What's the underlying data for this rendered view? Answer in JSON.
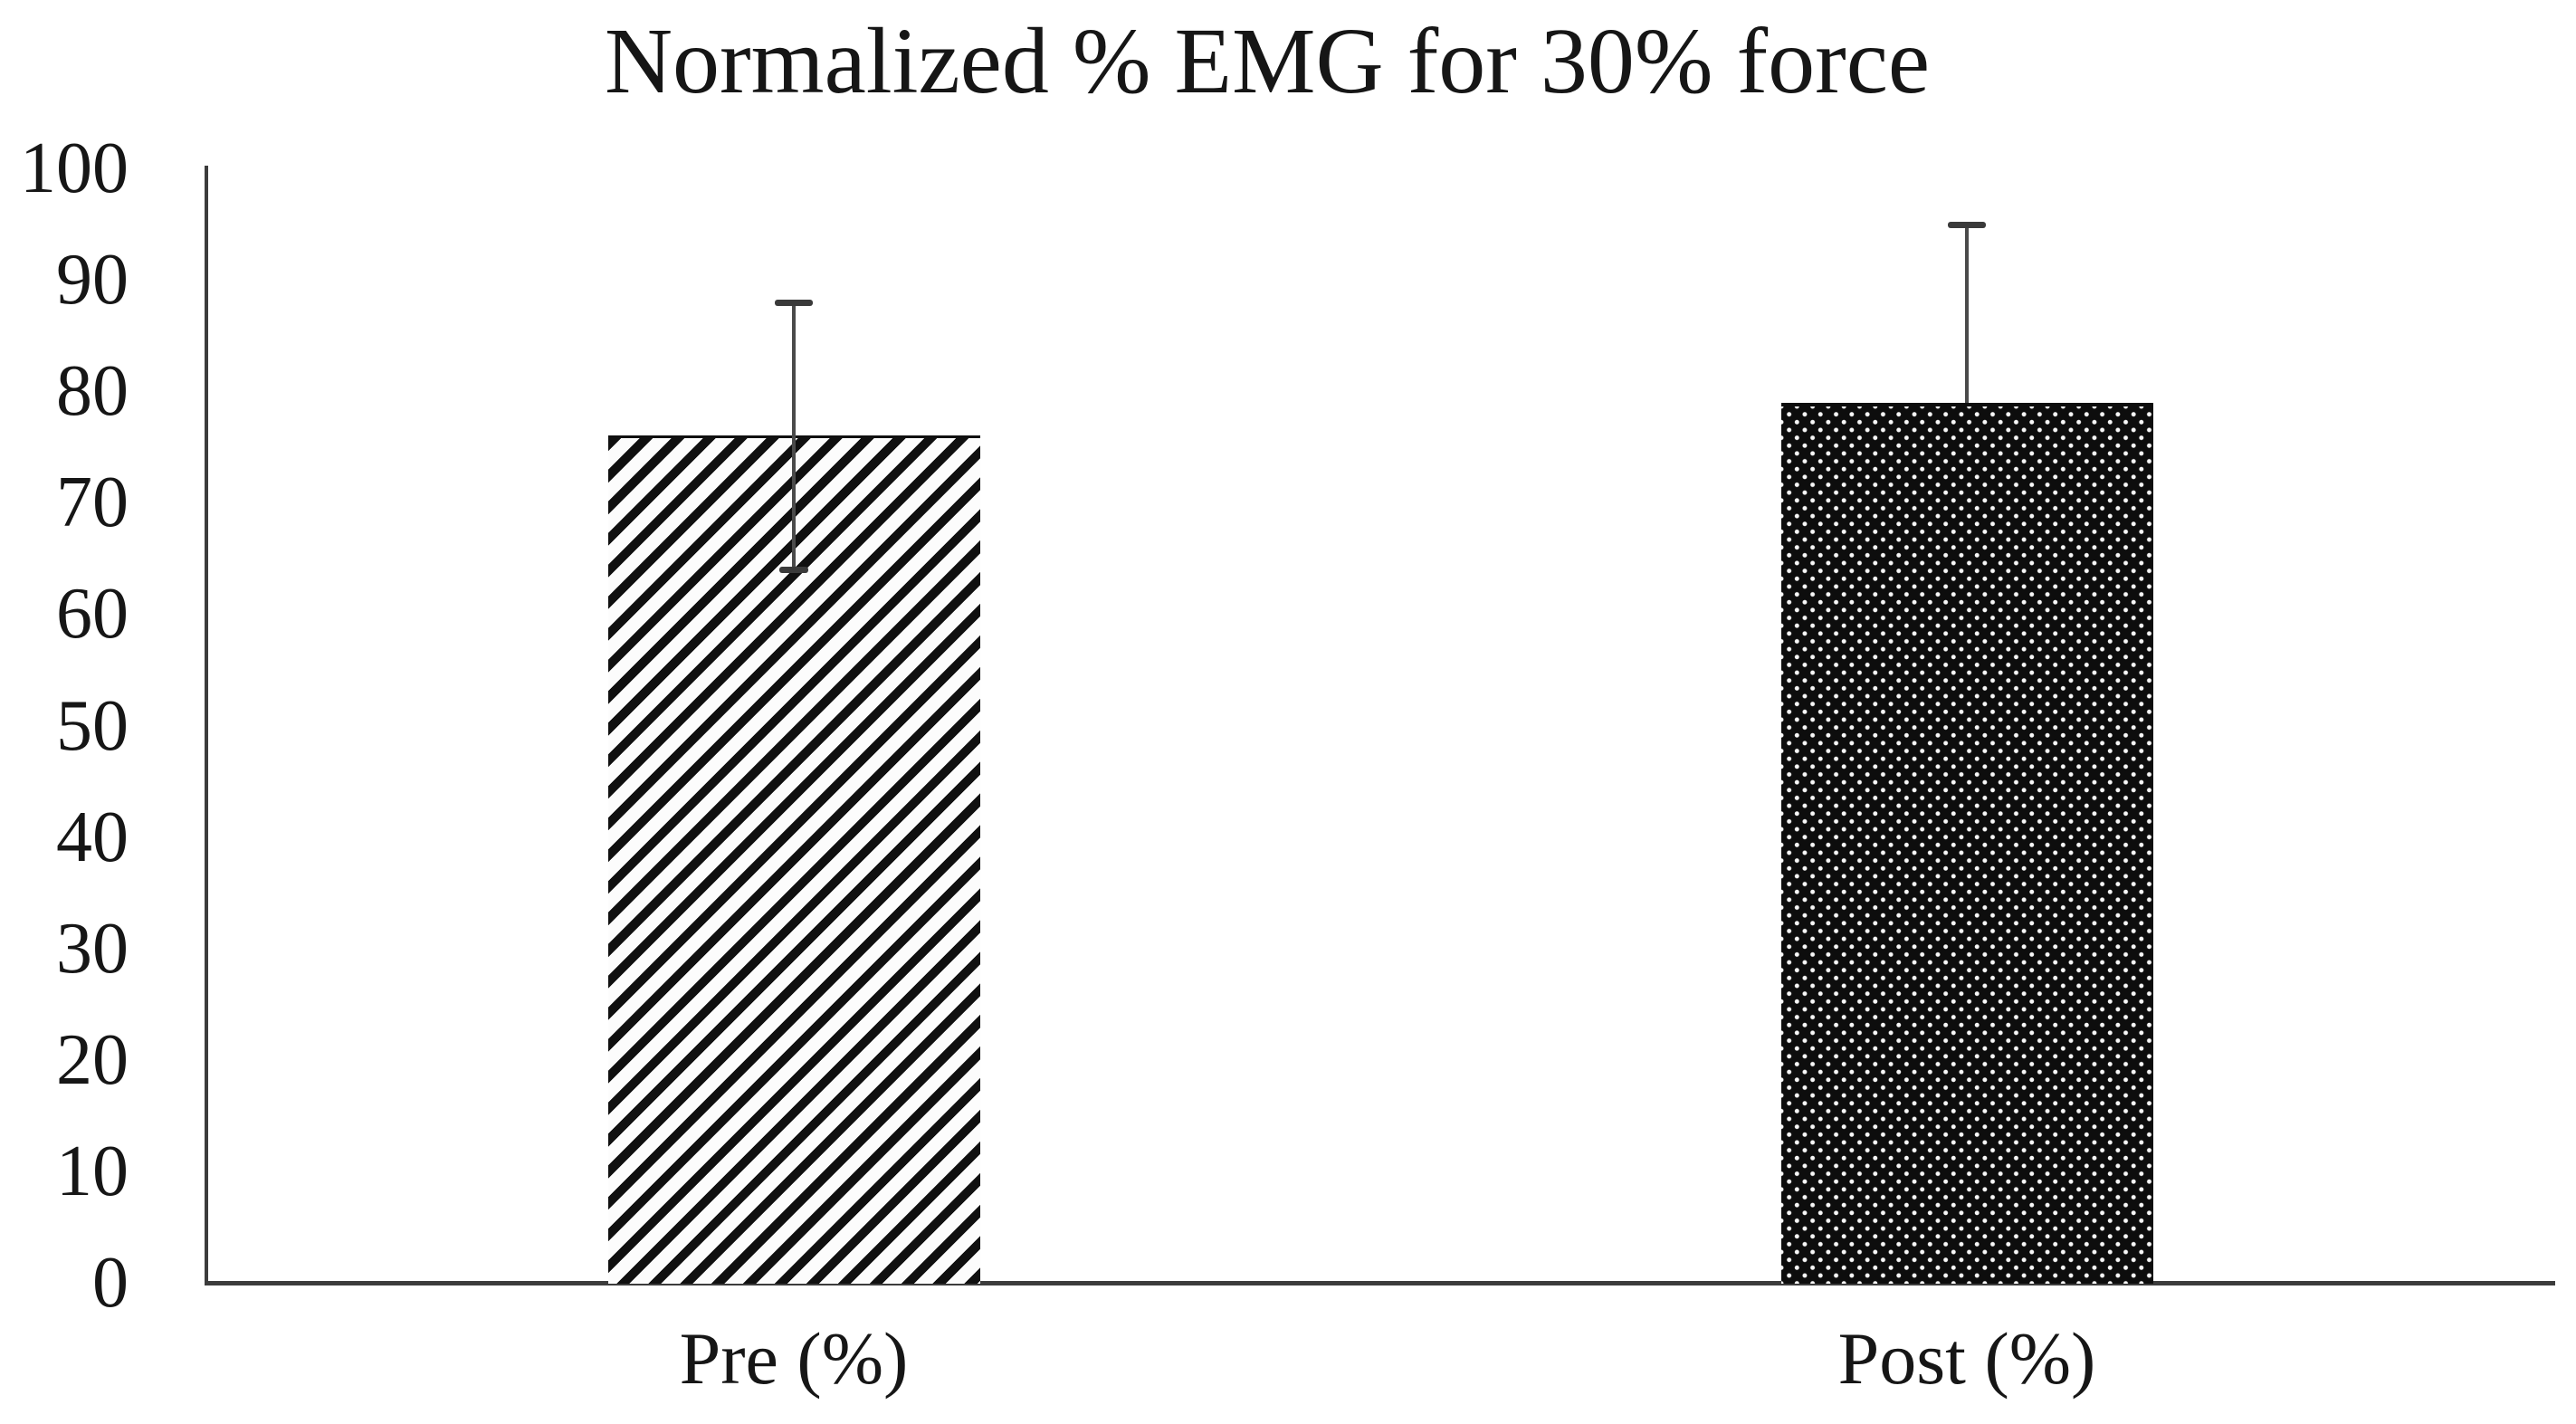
{
  "chart_data": {
    "type": "bar",
    "title": "Normalized % EMG for 30% force",
    "categories": [
      "Pre (%)",
      "Post (%)"
    ],
    "values": [
      76,
      79
    ],
    "error_up": [
      12,
      16
    ],
    "error_down": [
      12,
      0
    ],
    "ylim": [
      0,
      100
    ],
    "yticks": [
      100,
      90,
      80,
      70,
      60,
      50,
      40,
      30,
      20,
      10,
      0
    ],
    "xlabel": "",
    "ylabel": "",
    "grid": false,
    "legend": false,
    "bar_patterns": [
      "diagonal-hatch",
      "dense-dots"
    ],
    "colors": {
      "pattern_ink": "#101010",
      "background": "#ffffff",
      "axis": "#3c3c3c",
      "error_bar": "#4a4a4a",
      "text": "#161616"
    }
  }
}
